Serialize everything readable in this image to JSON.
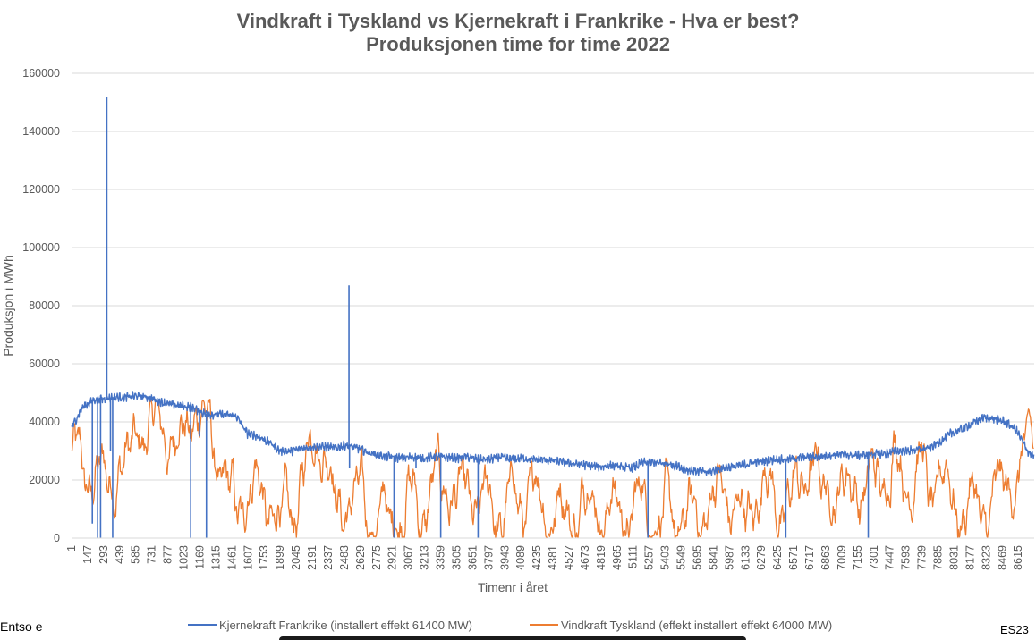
{
  "chart_data": {
    "type": "line",
    "title_line1": "Vindkraft i Tyskland vs Kjernekraft i Frankrike - Hva er best?",
    "title_line2": "Produksjonen time for time 2022",
    "xlabel": "Timenr i året",
    "ylabel": "Produksjon i MWh",
    "ylim": [
      0,
      160000
    ],
    "xlim": [
      1,
      8760
    ],
    "y_ticks": [
      "0",
      "20000",
      "40000",
      "60000",
      "80000",
      "100000",
      "120000",
      "140000",
      "160000"
    ],
    "y_tick_values": [
      0,
      20000,
      40000,
      60000,
      80000,
      100000,
      120000,
      140000,
      160000
    ],
    "x_ticks": [
      "1",
      "147",
      "293",
      "439",
      "585",
      "731",
      "877",
      "1023",
      "1169",
      "1315",
      "1461",
      "1607",
      "1753",
      "1899",
      "2045",
      "2191",
      "2337",
      "2483",
      "2629",
      "2775",
      "2921",
      "3067",
      "3213",
      "3359",
      "3505",
      "3651",
      "3797",
      "3943",
      "4089",
      "4235",
      "4381",
      "4527",
      "4673",
      "4819",
      "4965",
      "5111",
      "5257",
      "5403",
      "5549",
      "5695",
      "5841",
      "5987",
      "6133",
      "6279",
      "6425",
      "6571",
      "6717",
      "6863",
      "7009",
      "7155",
      "7301",
      "7447",
      "7593",
      "7739",
      "7885",
      "8031",
      "8177",
      "8323",
      "8469",
      "8615"
    ],
    "grid": true,
    "legend_position": "bottom",
    "series": [
      {
        "name": "Kjernekraft Frankrike (installert effekt 61400 MW)",
        "color": "#4472C4",
        "x": [
          1,
          100,
          200,
          300,
          400,
          500,
          600,
          700,
          800,
          900,
          1000,
          1100,
          1200,
          1300,
          1400,
          1500,
          1600,
          1700,
          1800,
          1900,
          2000,
          2100,
          2200,
          2300,
          2400,
          2500,
          2600,
          2700,
          2800,
          2900,
          3000,
          3100,
          3200,
          3300,
          3400,
          3500,
          3600,
          3700,
          3800,
          3900,
          4000,
          4100,
          4200,
          4300,
          4400,
          4500,
          4600,
          4700,
          4800,
          4900,
          5000,
          5100,
          5200,
          5300,
          5400,
          5500,
          5600,
          5700,
          5800,
          5900,
          6000,
          6100,
          6200,
          6300,
          6400,
          6500,
          6600,
          6700,
          6800,
          6900,
          7000,
          7100,
          7200,
          7300,
          7400,
          7500,
          7600,
          7700,
          7800,
          7900,
          8000,
          8100,
          8200,
          8300,
          8400,
          8500,
          8600,
          8700,
          8760
        ],
        "values": [
          38000,
          45000,
          47500,
          48000,
          48500,
          48500,
          49000,
          48500,
          47000,
          46000,
          45500,
          45000,
          43000,
          42500,
          42500,
          42000,
          36000,
          35000,
          33000,
          30000,
          30000,
          31000,
          31500,
          31500,
          31000,
          32000,
          31000,
          29500,
          28500,
          28000,
          27500,
          28000,
          27500,
          28000,
          28000,
          27500,
          28000,
          27000,
          27000,
          28000,
          27000,
          27500,
          27000,
          27000,
          26500,
          26000,
          25500,
          25000,
          24500,
          25000,
          24500,
          24000,
          26000,
          26000,
          25500,
          25000,
          23500,
          23000,
          22500,
          24000,
          24500,
          25000,
          26000,
          26500,
          27000,
          27000,
          27500,
          28000,
          28000,
          28500,
          29000,
          28500,
          28500,
          29000,
          29000,
          30000,
          30000,
          30500,
          31000,
          33000,
          36000,
          37500,
          39500,
          41500,
          41000,
          40000,
          37000,
          30000,
          28000
        ],
        "spikes": [
          {
            "x": 190,
            "y": 5000
          },
          {
            "x": 238,
            "y": 0
          },
          {
            "x": 265,
            "y": 0
          },
          {
            "x": 322,
            "y": 152000
          },
          {
            "x": 355,
            "y": 30000
          },
          {
            "x": 375,
            "y": 0
          },
          {
            "x": 1085,
            "y": 0
          },
          {
            "x": 1165,
            "y": 35000
          },
          {
            "x": 1228,
            "y": 0
          },
          {
            "x": 2525,
            "y": 87000
          },
          {
            "x": 2530,
            "y": 24000
          },
          {
            "x": 2935,
            "y": 0
          },
          {
            "x": 3135,
            "y": 24000
          },
          {
            "x": 3360,
            "y": 0
          },
          {
            "x": 3700,
            "y": 0
          },
          {
            "x": 5245,
            "y": 0
          },
          {
            "x": 6500,
            "y": 0
          },
          {
            "x": 7250,
            "y": 0
          }
        ]
      },
      {
        "name": "Vindkraft Tyskland (effekt installert effekt 64000 MW)",
        "color": "#ED7D31",
        "x": [
          1,
          100,
          200,
          300,
          400,
          500,
          600,
          700,
          800,
          900,
          1000,
          1100,
          1200,
          1300,
          1400,
          1500,
          1600,
          1700,
          1800,
          1900,
          2000,
          2100,
          2200,
          2300,
          2400,
          2500,
          2600,
          2700,
          2800,
          2900,
          3000,
          3100,
          3200,
          3300,
          3400,
          3500,
          3600,
          3700,
          3800,
          3900,
          4000,
          4100,
          4200,
          4300,
          4400,
          4500,
          4600,
          4700,
          4800,
          4900,
          5000,
          5100,
          5200,
          5300,
          5400,
          5500,
          5600,
          5700,
          5800,
          5900,
          6000,
          6100,
          6200,
          6300,
          6400,
          6500,
          6600,
          6700,
          6800,
          6900,
          7000,
          7100,
          7200,
          7300,
          7400,
          7500,
          7600,
          7700,
          7800,
          7900,
          8000,
          8100,
          8200,
          8300,
          8400,
          8500,
          8600,
          8700,
          8760
        ],
        "values": [
          28000,
          18000,
          25000,
          15000,
          30000,
          22000,
          40000,
          35000,
          42000,
          30000,
          38000,
          45000,
          40000,
          28000,
          12000,
          6000,
          22000,
          15000,
          8000,
          5000,
          10000,
          22000,
          42000,
          30000,
          8000,
          15000,
          12000,
          5000,
          8000,
          3000,
          12000,
          15000,
          8000,
          18000,
          22000,
          10000,
          14000,
          8000,
          12000,
          6000,
          15000,
          10000,
          18000,
          8000,
          14000,
          6000,
          12000,
          18000,
          8000,
          12000,
          5000,
          10000,
          14000,
          6000,
          8000,
          4000,
          6000,
          8000,
          12000,
          18000,
          10000,
          5000,
          14000,
          22000,
          12000,
          8000,
          20000,
          26000,
          15000,
          22000,
          12000,
          26000,
          10000,
          25000,
          20000,
          30000,
          18000,
          28000,
          12000,
          22000,
          15000,
          8000,
          14000,
          6000,
          12000,
          22000,
          18000,
          36000,
          38000
        ]
      }
    ]
  },
  "footer": {
    "source": "Entso e",
    "code": "ES23"
  }
}
